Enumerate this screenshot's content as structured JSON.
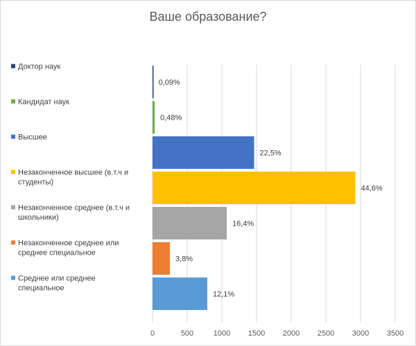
{
  "chart_data": {
    "type": "bar",
    "orientation": "horizontal",
    "title": "Ваше образование?",
    "xlabel": "",
    "ylabel": "",
    "xlim": [
      0,
      3500
    ],
    "x_ticks": [
      "0",
      "500",
      "1000",
      "1500",
      "2000",
      "2500",
      "3000",
      "3500"
    ],
    "grid": true,
    "legend": "left",
    "categories": [
      {
        "name": "Доктор наук",
        "value": 6,
        "label": "0,09%",
        "color": "#264478"
      },
      {
        "name": "Кандидат наук",
        "value": 31,
        "label": "0,48%",
        "color": "#70AD47"
      },
      {
        "name": "Высшее",
        "value": 1465,
        "label": "22,5%",
        "color": "#4472C4"
      },
      {
        "name": "Незаконченное высшее (в.т.ч и студенты)",
        "value": 2925,
        "label": "44,6%",
        "color": "#FFC000"
      },
      {
        "name": "Незаконченное среднее (в.т.ч и школьники)",
        "value": 1070,
        "label": "16,4%",
        "color": "#A5A5A5"
      },
      {
        "name": "Незаконченное среднее или среднее специальное",
        "value": 250,
        "label": "3,8%",
        "color": "#ED7D31"
      },
      {
        "name": "Среднее или среднее специальное",
        "value": 790,
        "label": "12,1%",
        "color": "#5B9BD5"
      }
    ]
  }
}
